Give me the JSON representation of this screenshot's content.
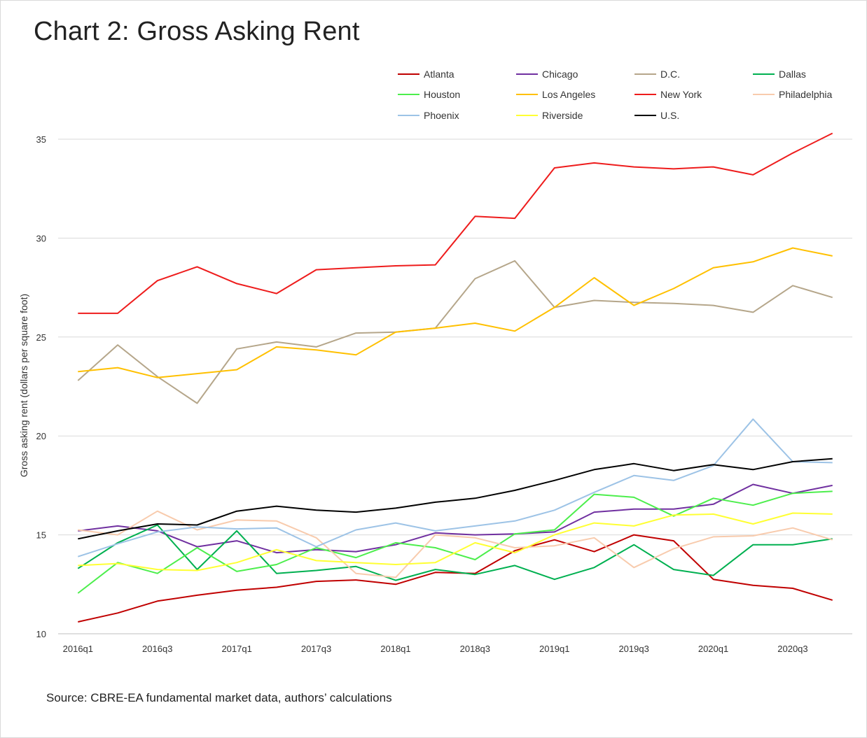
{
  "title": "Chart 2: Gross Asking Rent",
  "source": "Source: CBRE-EA fundamental market data, authors’ calculations",
  "chart_data": {
    "type": "line",
    "title": "Chart 2: Gross Asking Rent",
    "xlabel": "",
    "ylabel": "Gross asking rent (dollars per square foot)",
    "ylim": [
      10,
      35
    ],
    "yticks": [
      10,
      15,
      20,
      25,
      30,
      35
    ],
    "grid": "horizontal",
    "legend_position": "top",
    "x": [
      "2016q1",
      "2016q2",
      "2016q3",
      "2016q4",
      "2017q1",
      "2017q2",
      "2017q3",
      "2017q4",
      "2018q1",
      "2018q2",
      "2018q3",
      "2018q4",
      "2019q1",
      "2019q2",
      "2019q3",
      "2019q4",
      "2020q1",
      "2020q2",
      "2020q3",
      "2020q4"
    ],
    "xtick_labels": [
      "2016q1",
      "2016q3",
      "2017q1",
      "2017q3",
      "2018q1",
      "2018q3",
      "2019q1",
      "2019q3",
      "2020q1",
      "2020q3"
    ],
    "series": [
      {
        "name": "Atlanta",
        "color": "#c00000",
        "values": [
          10.6,
          11.05,
          11.65,
          11.95,
          12.2,
          12.35,
          12.65,
          12.72,
          12.5,
          13.1,
          13.05,
          14.2,
          14.75,
          14.15,
          15.0,
          14.7,
          12.75,
          12.45,
          12.3,
          11.7
        ]
      },
      {
        "name": "Chicago",
        "color": "#7030a0",
        "values": [
          15.2,
          15.45,
          15.2,
          14.4,
          14.7,
          14.1,
          14.25,
          14.15,
          14.5,
          15.1,
          15.0,
          15.05,
          15.15,
          16.15,
          16.3,
          16.3,
          16.55,
          17.55,
          17.1,
          17.5
        ]
      },
      {
        "name": "D.C.",
        "color": "#b5a68a",
        "values": [
          22.8,
          24.6,
          23.0,
          21.65,
          24.4,
          24.75,
          24.5,
          25.2,
          25.25,
          25.45,
          27.95,
          28.85,
          26.5,
          26.85,
          26.75,
          26.7,
          26.6,
          26.25,
          27.6,
          27.0
        ]
      },
      {
        "name": "Dallas",
        "color": "#00b050",
        "values": [
          13.3,
          14.6,
          15.5,
          13.25,
          15.2,
          13.05,
          13.2,
          13.4,
          12.7,
          13.25,
          13.0,
          13.45,
          12.75,
          13.35,
          14.5,
          13.25,
          12.95,
          14.5,
          14.5,
          14.8
        ]
      },
      {
        "name": "Houston",
        "color": "#4cee4c",
        "values": [
          12.05,
          13.6,
          13.05,
          14.35,
          13.15,
          13.5,
          14.35,
          13.85,
          14.6,
          14.35,
          13.75,
          15.05,
          15.25,
          17.05,
          16.9,
          15.95,
          16.85,
          16.5,
          17.1,
          17.2
        ]
      },
      {
        "name": "Los Angeles",
        "color": "#ffc000",
        "values": [
          23.25,
          23.45,
          22.95,
          23.15,
          23.35,
          24.5,
          24.35,
          24.1,
          25.25,
          25.45,
          25.7,
          25.3,
          26.5,
          28.0,
          26.6,
          27.45,
          28.5,
          28.8,
          29.5,
          29.1
        ]
      },
      {
        "name": "New York",
        "color": "#ee1c1c",
        "values": [
          26.2,
          26.2,
          27.85,
          28.55,
          27.7,
          27.2,
          28.4,
          28.5,
          28.6,
          28.65,
          31.1,
          31.0,
          33.55,
          33.8,
          33.6,
          33.5,
          33.6,
          33.2,
          34.3,
          35.3
        ]
      },
      {
        "name": "Philadelphia",
        "color": "#f8cbad",
        "values": [
          15.25,
          15.0,
          16.2,
          15.25,
          15.75,
          15.7,
          14.85,
          13.05,
          12.85,
          15.0,
          14.85,
          14.35,
          14.45,
          14.85,
          13.35,
          14.3,
          14.9,
          14.95,
          15.35,
          14.75
        ]
      },
      {
        "name": "Phoenix",
        "color": "#9dc3e6",
        "values": [
          13.9,
          14.55,
          15.15,
          15.4,
          15.3,
          15.35,
          14.4,
          15.25,
          15.6,
          15.2,
          15.45,
          15.7,
          16.25,
          17.15,
          18.0,
          17.75,
          18.5,
          20.85,
          18.7,
          18.65
        ]
      },
      {
        "name": "Riverside",
        "color": "#ffff33",
        "values": [
          13.45,
          13.55,
          13.25,
          13.2,
          13.6,
          14.25,
          13.7,
          13.6,
          13.5,
          13.6,
          14.6,
          14.1,
          15.0,
          15.6,
          15.45,
          16.0,
          16.05,
          15.55,
          16.1,
          16.05
        ]
      },
      {
        "name": "U.S.",
        "color": "#000000",
        "values": [
          14.8,
          15.2,
          15.55,
          15.5,
          16.2,
          16.45,
          16.25,
          16.15,
          16.35,
          16.65,
          16.85,
          17.25,
          17.75,
          18.3,
          18.6,
          18.25,
          18.55,
          18.3,
          18.7,
          18.85
        ]
      }
    ]
  }
}
